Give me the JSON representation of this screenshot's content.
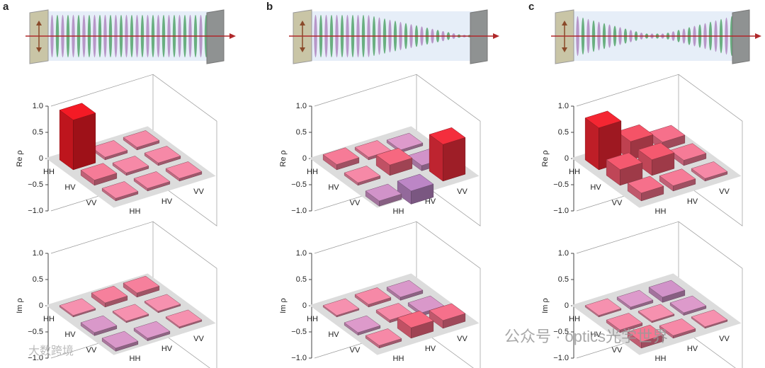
{
  "chart_data": [
    {
      "type": "bar3d",
      "panel": "a",
      "axis_label": "Re ρ",
      "rows": [
        "HH",
        "HV",
        "VV"
      ],
      "columns": [
        "HH",
        "HV",
        "VV"
      ],
      "values": [
        [
          0.95,
          0.05,
          0.05
        ],
        [
          0.1,
          0.05,
          0.05
        ],
        [
          0.05,
          0.05,
          0.05
        ]
      ],
      "zlim": [
        -1,
        1
      ],
      "zticks": [
        {
          "value": 1,
          "label": "1.0"
        },
        0.5,
        0,
        {
          "value": -0.5,
          "label": "−0.5"
        },
        {
          "value": -1,
          "label": "−1.0"
        }
      ],
      "color_scale": [
        "#7a5db5",
        "#eba2c4",
        "#e8151f"
      ]
    },
    {
      "type": "bar3d",
      "axis_label": "Im ρ",
      "rows": [
        "HH",
        "HV",
        "VV"
      ],
      "columns": [
        "HH",
        "HV",
        "VV"
      ],
      "values": [
        [
          0.03,
          0.08,
          0.08
        ],
        [
          -0.06,
          0.03,
          0.03
        ],
        [
          -0.06,
          -0.05,
          0.03
        ]
      ],
      "zlim": [
        -1,
        1
      ],
      "zticks": [
        {
          "value": 1,
          "label": "1.0"
        },
        0.5,
        0,
        {
          "value": -0.5,
          "label": "−0.5"
        },
        {
          "value": -1,
          "label": "−1.0"
        }
      ],
      "color_scale": [
        "#7a5db5",
        "#eba2c4",
        "#e8151f"
      ]
    },
    {
      "type": "bar3d",
      "panel": "b",
      "axis_label": "Re ρ",
      "rows": [
        "HH",
        "HV",
        "VV"
      ],
      "columns": [
        "HH",
        "HV",
        "VV"
      ],
      "values": [
        [
          0.1,
          0.05,
          -0.05
        ],
        [
          0.05,
          0.2,
          -0.1
        ],
        [
          -0.1,
          -0.25,
          0.7
        ]
      ],
      "zlim": [
        -1,
        1
      ],
      "zticks": [
        {
          "value": 1,
          "label": "1.0"
        },
        0.5,
        0,
        {
          "value": -0.5,
          "label": "−0.5"
        },
        {
          "value": -1,
          "label": "−1.0"
        }
      ],
      "color_scale": [
        "#7a5db5",
        "#eba2c4",
        "#e8151f"
      ]
    },
    {
      "type": "bar3d",
      "axis_label": "Im ρ",
      "rows": [
        "HH",
        "HV",
        "VV"
      ],
      "columns": [
        "HH",
        "HV",
        "VV"
      ],
      "values": [
        [
          0.03,
          0.05,
          -0.06
        ],
        [
          -0.05,
          0.05,
          -0.06
        ],
        [
          0.05,
          0.2,
          0.15
        ]
      ],
      "zlim": [
        -1,
        1
      ],
      "zticks": [
        {
          "value": 1,
          "label": "1.0"
        },
        0.5,
        0,
        {
          "value": -0.5,
          "label": "−0.5"
        },
        {
          "value": -1,
          "label": "−1.0"
        }
      ],
      "color_scale": [
        "#7a5db5",
        "#eba2c4",
        "#e8151f"
      ]
    },
    {
      "type": "bar3d",
      "panel": "c",
      "axis_label": "Re ρ",
      "rows": [
        "HH",
        "HV",
        "VV"
      ],
      "columns": [
        "HH",
        "HV",
        "VV"
      ],
      "values": [
        [
          0.8,
          0.35,
          0.15
        ],
        [
          0.3,
          0.3,
          0.1
        ],
        [
          0.15,
          0.1,
          0.05
        ]
      ],
      "zlim": [
        -1,
        1
      ],
      "zticks": [
        {
          "value": 1,
          "label": "1.0"
        },
        0.5,
        0,
        {
          "value": -0.5,
          "label": "−0.5"
        },
        {
          "value": -1,
          "label": "−1.0"
        }
      ],
      "color_scale": [
        "#7a5db5",
        "#eba2c4",
        "#e8151f"
      ]
    },
    {
      "type": "bar3d",
      "axis_label": "Im ρ",
      "rows": [
        "HH",
        "HV",
        "VV"
      ],
      "columns": [
        "HH",
        "HV",
        "VV"
      ],
      "values": [
        [
          0.03,
          -0.05,
          -0.1
        ],
        [
          0.05,
          0.03,
          -0.05
        ],
        [
          0.12,
          0.05,
          0.03
        ]
      ],
      "zlim": [
        -1,
        1
      ],
      "zticks": [
        {
          "value": 1,
          "label": "1.0"
        },
        0.5,
        0,
        {
          "value": -0.5,
          "label": "−0.5"
        },
        {
          "value": -1,
          "label": "−1.0"
        }
      ],
      "color_scale": [
        "#7a5db5",
        "#eba2c4",
        "#e8151f"
      ]
    }
  ],
  "watermarks": [
    "公众号 · optics光学世界",
    "大数跨境"
  ]
}
